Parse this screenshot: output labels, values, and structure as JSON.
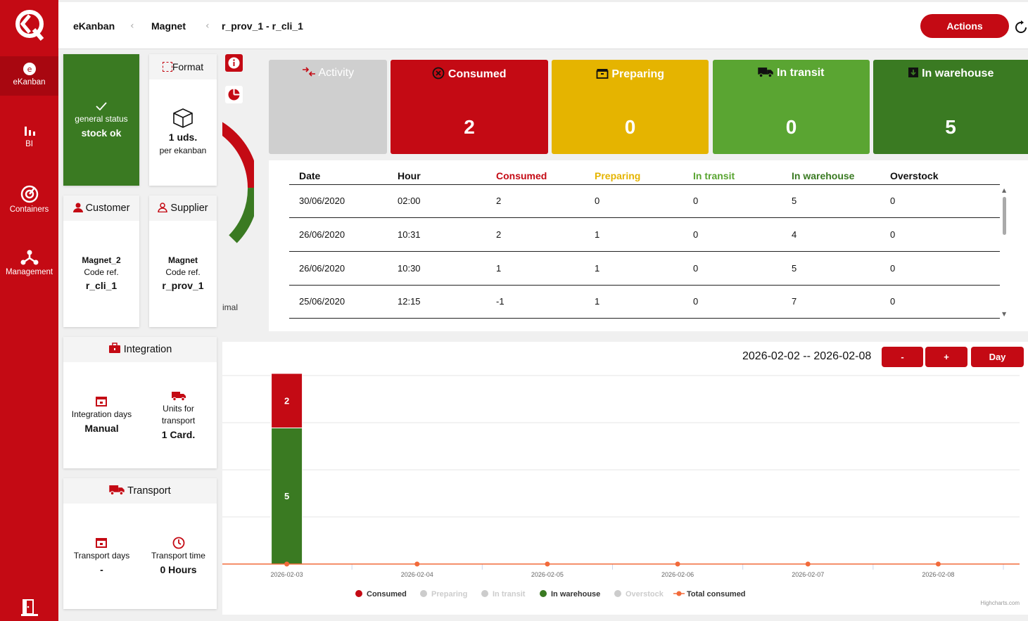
{
  "nav": {
    "items": [
      {
        "label": "eKanban",
        "icon": "ekanban-icon"
      },
      {
        "label": "BI",
        "icon": "bar-chart-icon"
      },
      {
        "label": "Containers",
        "icon": "containers-icon"
      },
      {
        "label": "Management",
        "icon": "management-icon"
      }
    ]
  },
  "breadcrumb": [
    "eKanban",
    "Magnet",
    "r_prov_1 - r_cli_1"
  ],
  "actions_label": "Actions",
  "status_card": {
    "label": "general status",
    "value": "stock ok"
  },
  "format_card": {
    "title": "Format",
    "value": "1 uds.",
    "sub": "per ekanban"
  },
  "customer_card": {
    "title": "Customer",
    "name": "Magnet_2",
    "ref_label": "Code ref.",
    "ref": "r_cli_1"
  },
  "supplier_card": {
    "title": "Supplier",
    "name": "Magnet",
    "ref_label": "Code ref.",
    "ref": "r_prov_1"
  },
  "donut_partial_text": "imal",
  "integration": {
    "title": "Integration",
    "days_label": "Integration days",
    "days_value": "Manual",
    "units_label_1": "Units for",
    "units_label_2": "transport",
    "units_value": "1 Card."
  },
  "transport": {
    "title": "Transport",
    "days_label": "Transport days",
    "days_value": "-",
    "time_label": "Transport time",
    "time_value": "0 Hours"
  },
  "stats": [
    {
      "label": "Activity",
      "value": "",
      "color": "#cfcfcf"
    },
    {
      "label": "Consumed",
      "value": "2",
      "color": "#c40a14"
    },
    {
      "label": "Preparing",
      "value": "0",
      "color": "#e5b400"
    },
    {
      "label": "In transit",
      "value": "0",
      "color": "#5aa532"
    },
    {
      "label": "In warehouse",
      "value": "5",
      "color": "#3a7a22"
    }
  ],
  "table": {
    "headers": [
      "Date",
      "Hour",
      "Consumed",
      "Preparing",
      "In transit",
      "In warehouse",
      "Overstock"
    ],
    "rows": [
      [
        "30/06/2020",
        "02:00",
        "2",
        "0",
        "0",
        "5",
        "0"
      ],
      [
        "26/06/2020",
        "10:31",
        "2",
        "1",
        "0",
        "4",
        "0"
      ],
      [
        "26/06/2020",
        "10:30",
        "1",
        "1",
        "0",
        "5",
        "0"
      ],
      [
        "25/06/2020",
        "12:15",
        "-1",
        "1",
        "0",
        "7",
        "0"
      ]
    ]
  },
  "chart_controls": {
    "range": "2026-02-02 -- 2026-02-08",
    "minus": "-",
    "plus": "+",
    "period": "Day"
  },
  "chart_data": {
    "type": "bar",
    "stacked": true,
    "categories": [
      "2026-02-03",
      "2026-02-04",
      "2026-02-05",
      "2026-02-06",
      "2026-02-07",
      "2026-02-08"
    ],
    "series": [
      {
        "name": "Consumed",
        "values": [
          2,
          0,
          0,
          0,
          0,
          0
        ],
        "color": "#c40a14"
      },
      {
        "name": "Preparing",
        "values": [
          0,
          0,
          0,
          0,
          0,
          0
        ],
        "color": "#cccccc"
      },
      {
        "name": "In transit",
        "values": [
          0,
          0,
          0,
          0,
          0,
          0
        ],
        "color": "#cccccc"
      },
      {
        "name": "In warehouse",
        "values": [
          5,
          0,
          0,
          0,
          0,
          0
        ],
        "color": "#3a7a22"
      },
      {
        "name": "Overstock",
        "values": [
          0,
          0,
          0,
          0,
          0,
          0
        ],
        "color": "#cccccc"
      },
      {
        "name": "Total consumed",
        "values": [
          0,
          0,
          0,
          0,
          0,
          0
        ],
        "color": "#f26b3a",
        "type": "line"
      }
    ],
    "legend": [
      "Consumed",
      "Preparing",
      "In transit",
      "In warehouse",
      "Overstock",
      "Total consumed"
    ],
    "ylim": [
      0,
      7
    ],
    "grid": true,
    "credit": "Highcharts.com"
  }
}
